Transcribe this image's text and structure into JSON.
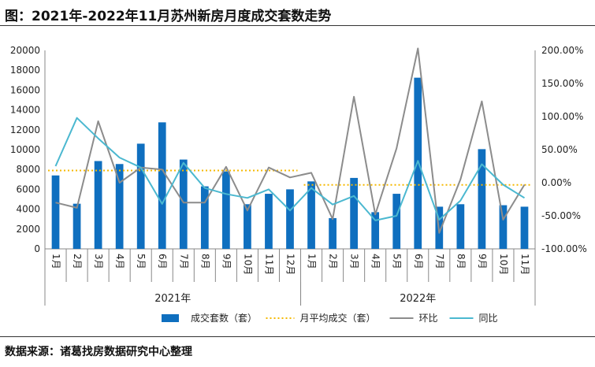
{
  "title": "图：2021年-2022年11月苏州新房月度成交套数走势",
  "source": "数据来源：诸葛找房数据研究中心整理",
  "chart_data": {
    "type": "bar",
    "categories": [
      "1月",
      "2月",
      "3月",
      "4月",
      "5月",
      "6月",
      "7月",
      "8月",
      "9月",
      "10月",
      "11月",
      "12月",
      "1月",
      "2月",
      "3月",
      "4月",
      "5月",
      "6月",
      "7月",
      "8月",
      "9月",
      "10月",
      "11月"
    ],
    "year_groups": [
      {
        "label": "2021年",
        "start": 0,
        "count": 12
      },
      {
        "label": "2022年",
        "start": 12,
        "count": 11
      }
    ],
    "series": [
      {
        "name": "成交套数（套）",
        "type": "bar",
        "axis": "left",
        "color": "#0F6FBF",
        "values": [
          7400,
          4550,
          8850,
          8550,
          10600,
          12750,
          9000,
          6300,
          7800,
          4500,
          5550,
          6000,
          6800,
          3100,
          7150,
          3700,
          5550,
          17250,
          4250,
          4500,
          10050,
          4400,
          4250
        ]
      },
      {
        "name": "月平均成交（套）",
        "type": "line",
        "style": "dotted",
        "axis": "left",
        "color": "#F5B800",
        "segments": [
          {
            "start": 0,
            "end": 11,
            "value": 7900
          },
          {
            "start": 12,
            "end": 22,
            "value": 6450
          }
        ]
      },
      {
        "name": "环比",
        "type": "line",
        "axis": "right",
        "color": "#8C8C8C",
        "values": [
          -0.3,
          -0.38,
          0.93,
          0.0,
          0.23,
          0.2,
          -0.3,
          -0.3,
          0.24,
          -0.42,
          0.23,
          0.08,
          0.15,
          -0.55,
          1.3,
          -0.48,
          0.52,
          2.03,
          -0.76,
          0.05,
          1.23,
          -0.56,
          -0.03
        ]
      },
      {
        "name": "同比",
        "type": "line",
        "axis": "right",
        "color": "#4BB8D0",
        "values": [
          0.25,
          0.98,
          0.67,
          0.38,
          0.23,
          -0.32,
          0.3,
          -0.08,
          -0.17,
          -0.23,
          -0.1,
          -0.42,
          -0.08,
          -0.33,
          -0.2,
          -0.57,
          -0.5,
          0.33,
          -0.56,
          -0.27,
          0.28,
          -0.03,
          -0.23
        ]
      }
    ],
    "y_left": {
      "min": 0,
      "max": 20000,
      "step": 2000
    },
    "y_right": {
      "min": -1.0,
      "max": 2.0,
      "step": 0.5,
      "format": "percent"
    },
    "legend": {
      "position": "bottom"
    }
  }
}
